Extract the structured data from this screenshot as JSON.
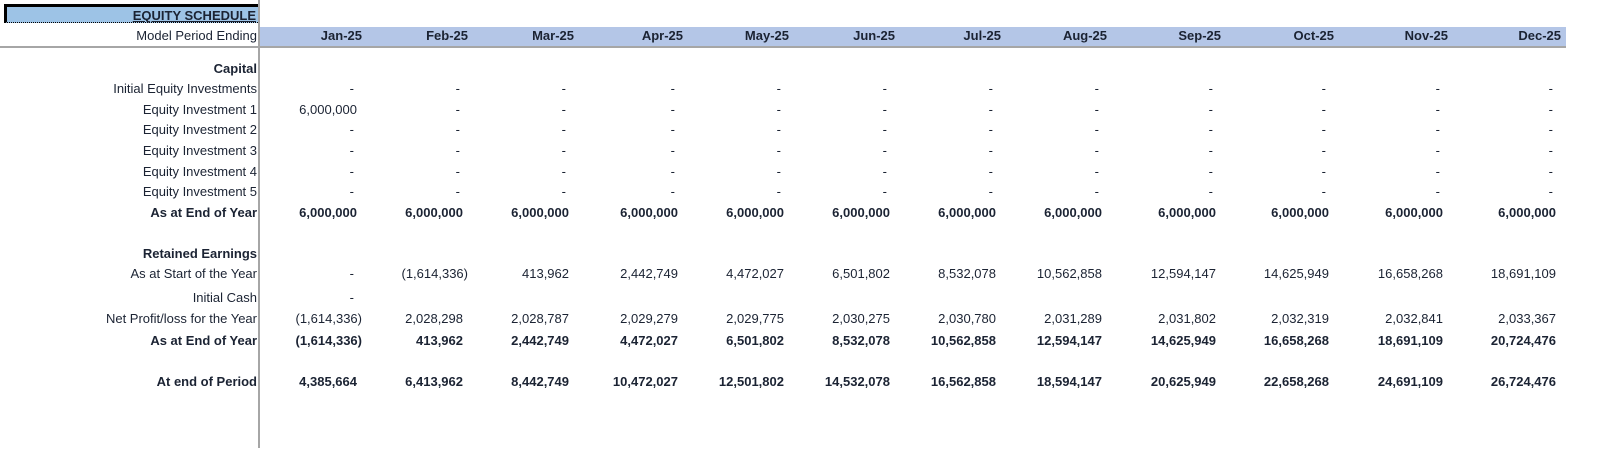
{
  "sheet": {
    "title": "EQUITY SCHEDULE",
    "period_label": "Model Period Ending",
    "columns": [
      "Jan-25",
      "Feb-25",
      "Mar-25",
      "Apr-25",
      "May-25",
      "Jun-25",
      "Jul-25",
      "Aug-25",
      "Sep-25",
      "Oct-25",
      "Nov-25",
      "Dec-25"
    ],
    "colors": {
      "title_fill": "#9dc3e6",
      "header_fill": "#b4c6e7",
      "grid_line": "#a6a6a6",
      "text": "#1b2333"
    }
  },
  "capital": {
    "heading": "Capital",
    "rows": [
      {
        "label": "Initial Equity Investments",
        "bold": false,
        "values": [
          "-",
          "-",
          "-",
          "-",
          "-",
          "-",
          "-",
          "-",
          "-",
          "-",
          "-",
          "-"
        ]
      },
      {
        "label": "Equity Investment 1",
        "bold": false,
        "values": [
          "6,000,000",
          "-",
          "-",
          "-",
          "-",
          "-",
          "-",
          "-",
          "-",
          "-",
          "-",
          "-"
        ]
      },
      {
        "label": "Equity Investment 2",
        "bold": false,
        "values": [
          "-",
          "-",
          "-",
          "-",
          "-",
          "-",
          "-",
          "-",
          "-",
          "-",
          "-",
          "-"
        ]
      },
      {
        "label": "Equity Investment 3",
        "bold": false,
        "values": [
          "-",
          "-",
          "-",
          "-",
          "-",
          "-",
          "-",
          "-",
          "-",
          "-",
          "-",
          "-"
        ]
      },
      {
        "label": "Equity Investment 4",
        "bold": false,
        "values": [
          "-",
          "-",
          "-",
          "-",
          "-",
          "-",
          "-",
          "-",
          "-",
          "-",
          "-",
          "-"
        ]
      },
      {
        "label": "Equity Investment 5",
        "bold": false,
        "values": [
          "-",
          "-",
          "-",
          "-",
          "-",
          "-",
          "-",
          "-",
          "-",
          "-",
          "-",
          "-"
        ]
      },
      {
        "label": "As at End of Year",
        "bold": true,
        "values": [
          "6,000,000",
          "6,000,000",
          "6,000,000",
          "6,000,000",
          "6,000,000",
          "6,000,000",
          "6,000,000",
          "6,000,000",
          "6,000,000",
          "6,000,000",
          "6,000,000",
          "6,000,000"
        ]
      }
    ]
  },
  "retained_earnings": {
    "heading": "Retained Earnings",
    "rows": [
      {
        "label": "As at Start of the Year",
        "bold": false,
        "values": [
          "-",
          "(1,614,336)",
          "413,962",
          "2,442,749",
          "4,472,027",
          "6,501,802",
          "8,532,078",
          "10,562,858",
          "12,594,147",
          "14,625,949",
          "16,658,268",
          "18,691,109"
        ]
      },
      {
        "label": "Initial Cash",
        "bold": false,
        "values": [
          "-",
          "",
          "",
          "",
          "",
          "",
          "",
          "",
          "",
          "",
          "",
          ""
        ]
      },
      {
        "label": "Net Profit/loss for the Year",
        "bold": false,
        "values": [
          "(1,614,336)",
          "2,028,298",
          "2,028,787",
          "2,029,279",
          "2,029,775",
          "2,030,275",
          "2,030,780",
          "2,031,289",
          "2,031,802",
          "2,032,319",
          "2,032,841",
          "2,033,367"
        ]
      },
      {
        "label": "As at End of Year",
        "bold": true,
        "values": [
          "(1,614,336)",
          "413,962",
          "2,442,749",
          "4,472,027",
          "6,501,802",
          "8,532,078",
          "10,562,858",
          "12,594,147",
          "14,625,949",
          "16,658,268",
          "18,691,109",
          "20,724,476"
        ]
      }
    ]
  },
  "total": {
    "label": "At end of Period",
    "bold": true,
    "values": [
      "4,385,664",
      "6,413,962",
      "8,442,749",
      "10,472,027",
      "12,501,802",
      "14,532,078",
      "16,562,858",
      "18,594,147",
      "20,625,949",
      "22,658,268",
      "24,691,109",
      "26,724,476"
    ]
  }
}
